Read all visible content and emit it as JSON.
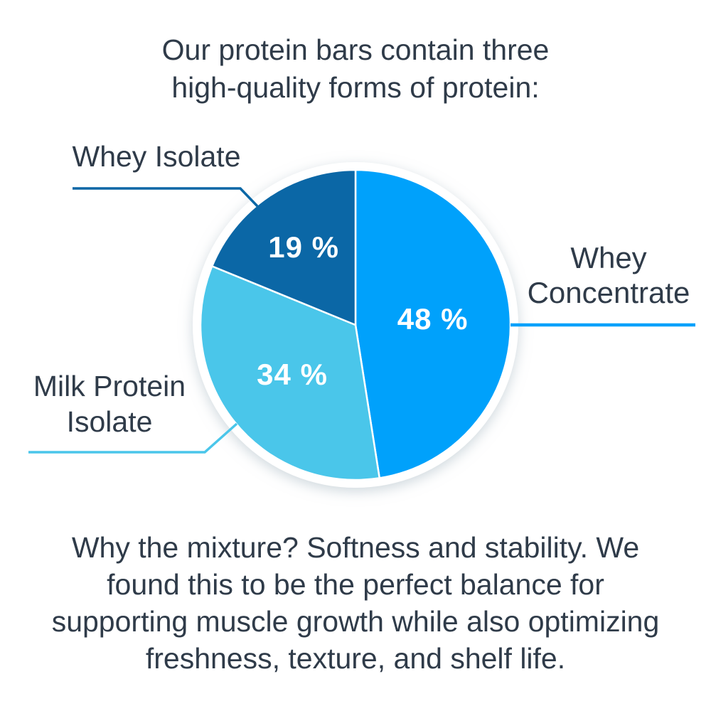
{
  "chart_data": {
    "type": "pie",
    "title_lines": [
      "Our protein bars contain three",
      "high-quality forms of protein:"
    ],
    "title": "Our protein bars contain three high-quality forms of protein:",
    "slices": [
      {
        "label": "Whey Concentrate",
        "label_lines": [
          "Whey",
          "Concentrate"
        ],
        "value": 48,
        "unit": "%",
        "color": "#00A1FB"
      },
      {
        "label": "Milk Protein Isolate",
        "label_lines": [
          "Milk Protein",
          "Isolate"
        ],
        "value": 34,
        "unit": "%",
        "color": "#4AC6EA"
      },
      {
        "label": "Whey Isolate",
        "label_lines": [
          "Whey Isolate"
        ],
        "value": 19,
        "unit": "%",
        "color": "#0B67A6"
      }
    ],
    "start_angle": "12-o-clock",
    "direction": "clockwise",
    "slice_border_color": "#FFFFFF",
    "percent_label_color": "#FFFFFF",
    "text_color": "#2F3B49",
    "background_color": "#FFFFFF",
    "footer_lines": [
      "Why the mixture? Softness and stability. We",
      "found this to be the perfect balance for",
      "supporting muscle growth while also optimizing",
      "freshness, texture, and shelf life."
    ],
    "footer_text": "Why the mixture? Softness and stability. We found this to be the perfect balance for supporting muscle growth while also optimizing freshness, texture, and shelf life."
  }
}
